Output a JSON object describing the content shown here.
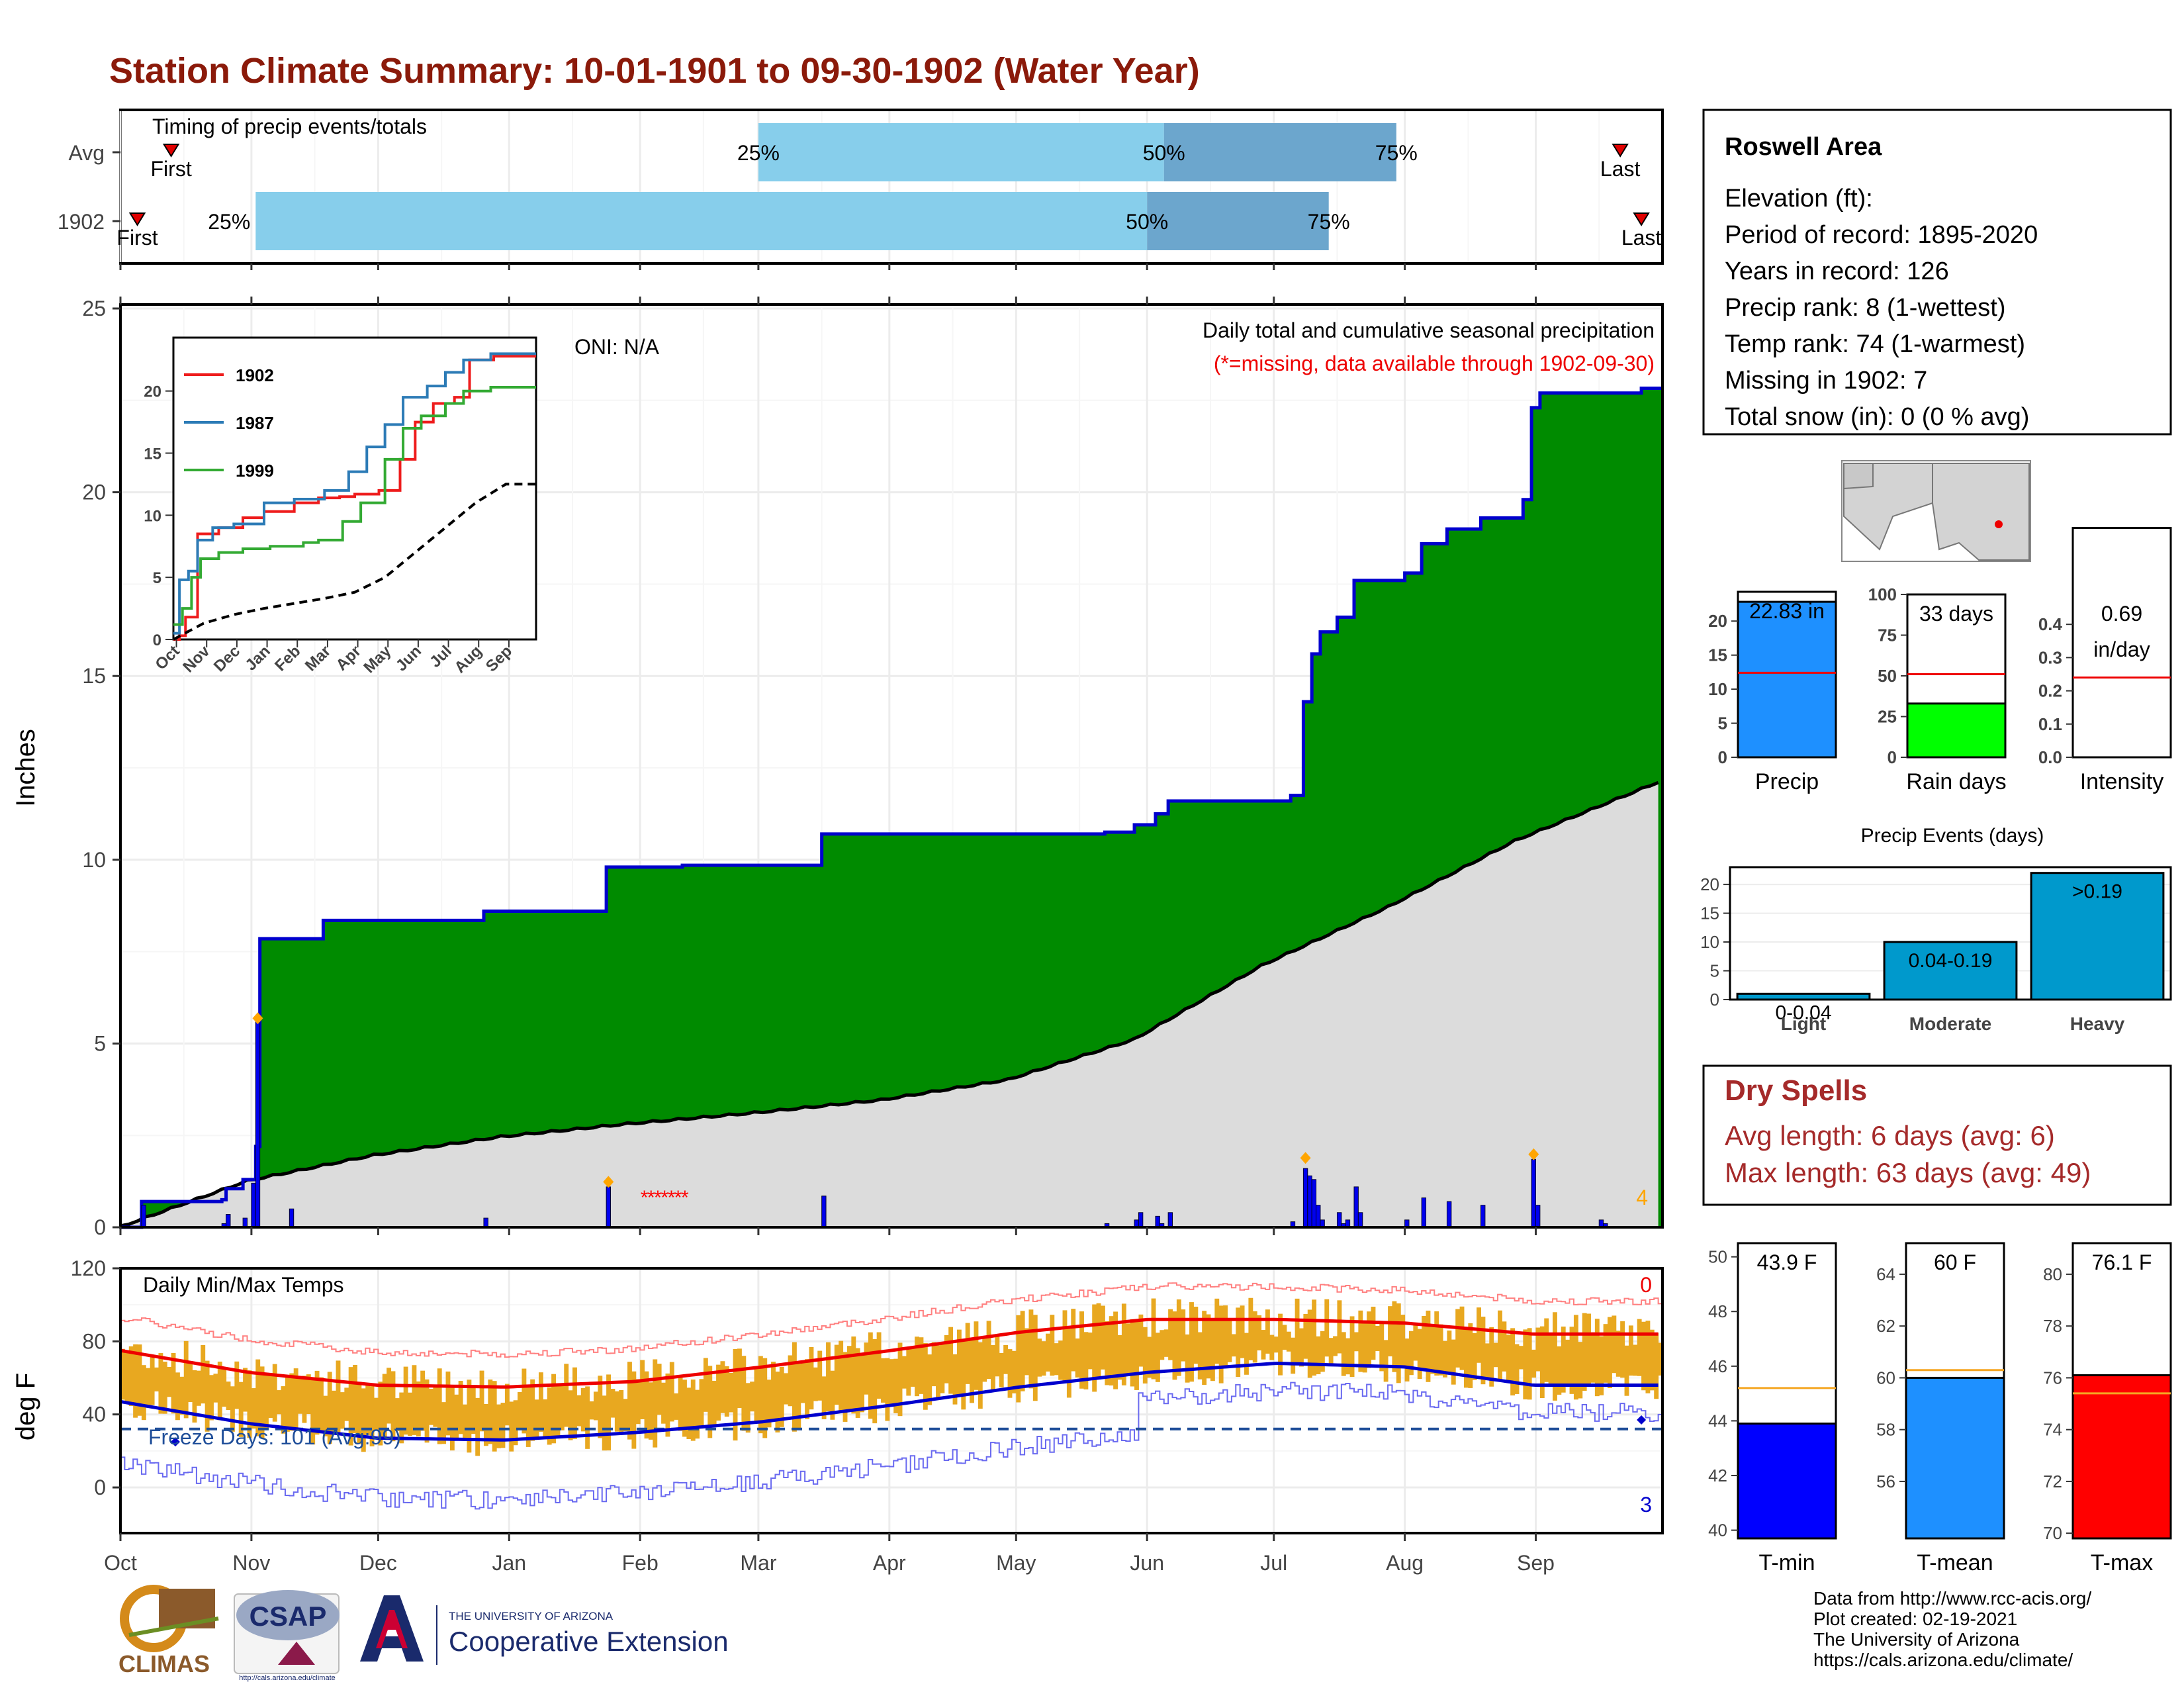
{
  "title": "Station Climate Summary: 10-01-1901 to 09-30-1902 (Water Year)",
  "timing": {
    "label": "Timing of precip events/totals",
    "rows": [
      {
        "name": "Avg",
        "first_doy": 12,
        "last_doy": 355,
        "p25_doy": 151,
        "p50_doy": 247,
        "p75_doy": 302,
        "first_label": "First",
        "last_label": "Last"
      },
      {
        "name": "1902",
        "first_doy": 4,
        "last_doy": 360,
        "p25_doy": 32,
        "p50_doy": 243,
        "p75_doy": 286,
        "first_label": "First",
        "last_label": "Last"
      }
    ],
    "pct_labels": [
      "25%",
      "50%",
      "75%"
    ],
    "colors": {
      "light": "#87ceeb",
      "dark": "#6ca6cd",
      "marker": "#e00000"
    }
  },
  "precip_chart": {
    "ylabel": "Inches",
    "annotation_main": "Daily total and cumulative seasonal precipitation",
    "annotation_missing": "(*=missing, data available through 1902-09-30)",
    "oni": "ONI: N/A",
    "corner_count": "4",
    "ylim": [
      0,
      25
    ],
    "yticks": [
      0,
      5,
      10,
      15,
      20,
      25
    ],
    "colors": {
      "cumulative_fill": "#008b00",
      "cumulative_line": "#0000cd",
      "normal_fill": "#dcdcdc",
      "daily_bar": "#0000ee",
      "extreme_marker": "#ffa500",
      "missing": "#ff0000"
    }
  },
  "chart_data": [
    {
      "type": "area",
      "title": "Daily total and cumulative seasonal precipitation",
      "ylabel": "Inches",
      "ylim": [
        0,
        25
      ],
      "x_axis": "day of water year (Oct 1 = 0)",
      "series": [
        {
          "name": "1902 cumulative",
          "steps": [
            [
              0,
              0
            ],
            [
              5,
              0.7
            ],
            [
              24,
              0.75
            ],
            [
              25,
              1.05
            ],
            [
              29,
              1.3
            ],
            [
              32,
              2.2
            ],
            [
              33,
              7.85
            ],
            [
              48,
              8.35
            ],
            [
              86,
              8.6
            ],
            [
              115,
              9.8
            ],
            [
              133,
              9.85
            ],
            [
              166,
              10.7
            ],
            [
              233,
              10.75
            ],
            [
              240,
              10.95
            ],
            [
              245,
              11.25
            ],
            [
              248,
              11.6
            ],
            [
              277,
              11.75
            ],
            [
              280,
              14.3
            ],
            [
              282,
              15.6
            ],
            [
              284,
              16.2
            ],
            [
              288,
              16.6
            ],
            [
              292,
              17.6
            ],
            [
              304,
              17.8
            ],
            [
              308,
              18.6
            ],
            [
              314,
              19.0
            ],
            [
              322,
              19.3
            ],
            [
              332,
              19.8
            ],
            [
              334,
              22.3
            ],
            [
              336,
              22.7
            ],
            [
              360,
              22.83
            ]
          ]
        },
        {
          "name": "Avg cumulative",
          "points": [
            [
              0,
              0
            ],
            [
              30,
              1.25
            ],
            [
              60,
              1.95
            ],
            [
              90,
              2.45
            ],
            [
              120,
              2.8
            ],
            [
              150,
              3.1
            ],
            [
              180,
              3.45
            ],
            [
              210,
              4.0
            ],
            [
              240,
              5.1
            ],
            [
              270,
              7.1
            ],
            [
              300,
              8.7
            ],
            [
              330,
              10.5
            ],
            [
              364,
              12.1
            ]
          ]
        }
      ],
      "daily_bars": [
        [
          5,
          0.6
        ],
        [
          24,
          0.1
        ],
        [
          25,
          0.35
        ],
        [
          29,
          0.25
        ],
        [
          31,
          1.2
        ],
        [
          32,
          5.65
        ],
        [
          40,
          0.5
        ],
        [
          86,
          0.25
        ],
        [
          115,
          1.1
        ],
        [
          166,
          0.85
        ],
        [
          233,
          0.1
        ],
        [
          240,
          0.2
        ],
        [
          241,
          0.4
        ],
        [
          245,
          0.3
        ],
        [
          246,
          0.1
        ],
        [
          248,
          0.4
        ],
        [
          277,
          0.15
        ],
        [
          280,
          1.6
        ],
        [
          281,
          1.4
        ],
        [
          282,
          1.3
        ],
        [
          283,
          0.6
        ],
        [
          284,
          0.2
        ],
        [
          288,
          0.4
        ],
        [
          289,
          0.1
        ],
        [
          290,
          0.2
        ],
        [
          292,
          1.1
        ],
        [
          293,
          0.4
        ],
        [
          304,
          0.2
        ],
        [
          308,
          0.8
        ],
        [
          314,
          0.7
        ],
        [
          322,
          0.6
        ],
        [
          334,
          1.85
        ],
        [
          335,
          0.6
        ],
        [
          350,
          0.2
        ],
        [
          351,
          0.1
        ]
      ]
    },
    {
      "type": "line",
      "title": "",
      "xlabel": "",
      "ylabel": "",
      "ylim": [
        0,
        22
      ],
      "x": [
        "Oct",
        "Nov",
        "Dec",
        "Jan",
        "Feb",
        "Mar",
        "Apr",
        "May",
        "Jun",
        "Jul",
        "Aug",
        "Sep"
      ],
      "series": [
        {
          "name": "1902",
          "color": "#ee1c1c",
          "steps": [
            [
              0,
              0
            ],
            [
              0.2,
              0.3
            ],
            [
              0.4,
              1.8
            ],
            [
              0.8,
              8.5
            ],
            [
              1.5,
              9.0
            ],
            [
              2.3,
              9.8
            ],
            [
              3.0,
              10.3
            ],
            [
              4.0,
              11.0
            ],
            [
              4.8,
              11.4
            ],
            [
              5.5,
              11.5
            ],
            [
              6.0,
              11.7
            ],
            [
              6.8,
              12.0
            ],
            [
              7.5,
              14.5
            ],
            [
              8.0,
              17.5
            ],
            [
              8.6,
              19.0
            ],
            [
              9.3,
              19.5
            ],
            [
              9.8,
              22.5
            ],
            [
              10.6,
              22.8
            ],
            [
              12,
              22.8
            ]
          ]
        },
        {
          "name": "1987",
          "color": "#2c7bb6",
          "steps": [
            [
              0,
              0.5
            ],
            [
              0.2,
              4.8
            ],
            [
              0.5,
              5.5
            ],
            [
              0.8,
              8.0
            ],
            [
              1.3,
              9.0
            ],
            [
              2.0,
              9.3
            ],
            [
              3.0,
              11.0
            ],
            [
              4.0,
              11.3
            ],
            [
              5.0,
              12.0
            ],
            [
              5.8,
              13.5
            ],
            [
              6.4,
              15.5
            ],
            [
              7.0,
              17.3
            ],
            [
              7.6,
              19.5
            ],
            [
              8.4,
              20.4
            ],
            [
              9.0,
              21.5
            ],
            [
              9.6,
              22.5
            ],
            [
              10.5,
              23.0
            ],
            [
              12,
              23.0
            ]
          ]
        },
        {
          "name": "1999",
          "color": "#33aa33",
          "steps": [
            [
              0,
              1.2
            ],
            [
              0.3,
              2.5
            ],
            [
              0.6,
              5.0
            ],
            [
              0.9,
              6.5
            ],
            [
              1.5,
              7.0
            ],
            [
              2.3,
              7.3
            ],
            [
              3.2,
              7.5
            ],
            [
              4.3,
              7.8
            ],
            [
              4.8,
              8.0
            ],
            [
              5.6,
              9.5
            ],
            [
              6.2,
              11.0
            ],
            [
              7.0,
              14.5
            ],
            [
              7.6,
              17.0
            ],
            [
              8.2,
              18.0
            ],
            [
              9.0,
              19.0
            ],
            [
              9.6,
              20.0
            ],
            [
              10.5,
              20.3
            ],
            [
              12,
              20.3
            ]
          ]
        },
        {
          "name": "Avg",
          "color": "#000000",
          "dashed": true,
          "points": [
            [
              0,
              0
            ],
            [
              1,
              1.3
            ],
            [
              2,
              2.0
            ],
            [
              3,
              2.5
            ],
            [
              4,
              2.9
            ],
            [
              5,
              3.3
            ],
            [
              6,
              3.8
            ],
            [
              7,
              5.0
            ],
            [
              8,
              7.0
            ],
            [
              9,
              9.0
            ],
            [
              10,
              11.0
            ],
            [
              11,
              12.5
            ],
            [
              12,
              12.5
            ]
          ]
        }
      ]
    },
    {
      "type": "bar",
      "title": "Daily Min/Max Temps",
      "ylabel": "deg F",
      "ylim": [
        -25,
        120
      ],
      "yticks": [
        0,
        40,
        80,
        120
      ],
      "note": "Daily min/max range bars with 1902 smoothed max (red) and min (blue) normals; dashed line at 32F",
      "max_normal_monthly": [
        75,
        63,
        56,
        55,
        58,
        66,
        75,
        85,
        92,
        92,
        90,
        84
      ],
      "min_normal_monthly": [
        47,
        35,
        27,
        26,
        30,
        36,
        45,
        55,
        63,
        68,
        66,
        56
      ],
      "freeze_line": 32
    },
    {
      "type": "bar",
      "title": "",
      "categories": [
        "Precip",
        "Rain days",
        "Intensity"
      ],
      "values": [
        22.83,
        33,
        0.69
      ],
      "normals": [
        12.4,
        51,
        0.24
      ],
      "ylims": [
        [
          0,
          24.3
        ],
        [
          0,
          100
        ],
        [
          0,
          0.49
        ]
      ]
    },
    {
      "type": "bar",
      "title": "Precip Events (days)",
      "categories": [
        "Light",
        "Moderate",
        "Heavy"
      ],
      "values": [
        1,
        10,
        22
      ],
      "ylim": [
        0,
        23
      ]
    },
    {
      "type": "bar",
      "title": "",
      "categories": [
        "T-min",
        "T-mean",
        "T-max"
      ],
      "values": [
        43.9,
        60,
        76.1
      ],
      "normals": [
        45.2,
        60.3,
        75.4
      ],
      "ylims": [
        [
          39.7,
          50.5
        ],
        [
          53.8,
          65.2
        ],
        [
          69.8,
          81.2
        ]
      ]
    }
  ],
  "temp_chart": {
    "ylabel": "deg F",
    "label": "Daily Min/Max Temps",
    "freeze_text": "Freeze Days: 101 (Avg:99)",
    "count_top": "0",
    "count_bottom": "3",
    "yticks": [
      0,
      40,
      80,
      120
    ],
    "colors": {
      "bars": "#e8a820",
      "max_line": "#ee0000",
      "min_line": "#0000cd",
      "freeze_line": "#1f4e99"
    }
  },
  "months": [
    "Oct",
    "Nov",
    "Dec",
    "Jan",
    "Feb",
    "Mar",
    "Apr",
    "May",
    "Jun",
    "Jul",
    "Aug",
    "Sep"
  ],
  "inset": {
    "legend": [
      "1902",
      "1987",
      "1999"
    ],
    "yticks": [
      0,
      5,
      10,
      15,
      20
    ]
  },
  "info": {
    "station": "Roswell Area",
    "elevation": "Elevation (ft):",
    "period": "Period of record: 1895-2020",
    "years": "Years in record: 126",
    "precip_rank": "Precip rank: 8 (1-wettest)",
    "temp_rank": "Temp rank: 74 (1-warmest)",
    "missing": "Missing in 1902: 7",
    "snow": "Total snow (in): 0 (0 % avg)"
  },
  "mini_bars": {
    "precip": {
      "label": "Precip",
      "value_text": "22.83 in",
      "value": 22.83,
      "normal": 12.4,
      "ymax": 24.3,
      "yticks": [
        0,
        5,
        10,
        15,
        20
      ],
      "color": "#1e90ff"
    },
    "rain_days": {
      "label": "Rain days",
      "value_text": "33 days",
      "value": 33,
      "normal": 51,
      "ymax": 100,
      "yticks": [
        0,
        25,
        50,
        75,
        100
      ],
      "color": "#00ff00"
    },
    "intensity": {
      "label": "Intensity",
      "value_text": "0.69",
      "value_text2": "in/day",
      "value": 0.69,
      "normal": 0.24,
      "ymax": 0.49,
      "yticks": [
        "0.0",
        "0.1",
        "0.2",
        "0.3",
        "0.4"
      ],
      "color": "#ffffff"
    }
  },
  "events": {
    "title": "Precip Events (days)",
    "categories": [
      "Light",
      "Moderate",
      "Heavy"
    ],
    "values": [
      1,
      10,
      22
    ],
    "labels": [
      "0-0.04",
      "0.04-0.19",
      ">0.19"
    ],
    "yticks": [
      0,
      5,
      10,
      15,
      20
    ],
    "color": "#0099cc"
  },
  "dry_spells": {
    "title": "Dry Spells",
    "avg": "Avg length: 6 days (avg: 6)",
    "max": "Max length: 63 days (avg: 49)",
    "color": "#a52a2a"
  },
  "temp_bars": {
    "tmin": {
      "label": "T-min",
      "value_text": "43.9 F",
      "value": 43.9,
      "normal": 45.2,
      "ymin": 39.7,
      "ymax": 50.5,
      "yticks": [
        40,
        42,
        44,
        46,
        48,
        50
      ],
      "color": "#0000ff"
    },
    "tmean": {
      "label": "T-mean",
      "value_text": "60 F",
      "value": 60,
      "normal": 60.3,
      "ymin": 53.8,
      "ymax": 65.2,
      "yticks": [
        56,
        58,
        60,
        62,
        64
      ],
      "color": "#1e90ff"
    },
    "tmax": {
      "label": "T-max",
      "value_text": "76.1 F",
      "value": 76.1,
      "normal": 75.4,
      "ymin": 69.8,
      "ymax": 81.2,
      "yticks": [
        70,
        72,
        74,
        76,
        78,
        80
      ],
      "color": "#ff0000"
    }
  },
  "footer": {
    "line1": "Data from http://www.rcc-acis.org/",
    "line2": "Plot created: 02-19-2021",
    "line3": "The University of Arizona",
    "line4": "https://cals.arizona.edu/climate/"
  },
  "logos": {
    "climas": "CLIMAS",
    "csap": "CSAP",
    "csap_url": "http://cals.arizona.edu/climate",
    "ua_small": "THE UNIVERSITY OF ARIZONA",
    "ua_big": "Cooperative Extension"
  }
}
